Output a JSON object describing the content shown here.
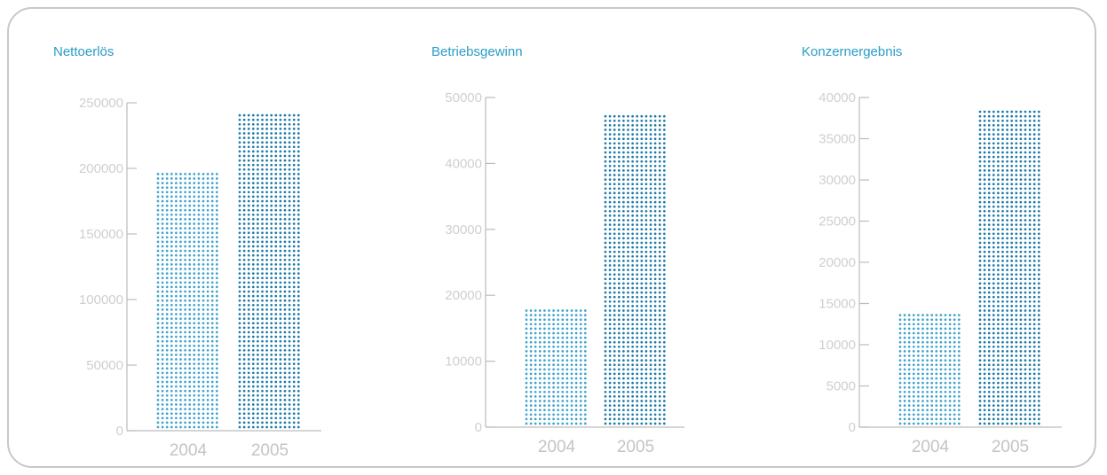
{
  "colors": {
    "series_2004": "#3fa3cb",
    "series_2005": "#1d7aa6",
    "title": "#2a9cc6",
    "axis": "#bcbcbc"
  },
  "chart_data": [
    {
      "type": "bar",
      "title": "Nettoerlös",
      "categories": [
        "2004",
        "2005"
      ],
      "values": [
        197000,
        243000
      ],
      "yticks": [
        "0",
        "50000",
        "100000",
        "150000",
        "200000",
        "250000"
      ],
      "ylim": [
        0,
        250000
      ],
      "grid": false
    },
    {
      "type": "bar",
      "title": "Betriebsgewinn",
      "categories": [
        "2004",
        "2005"
      ],
      "values": [
        18200,
        47500
      ],
      "yticks": [
        "0",
        "10000",
        "20000",
        "30000",
        "40000",
        "50000"
      ],
      "ylim": [
        0,
        50000
      ],
      "grid": false
    },
    {
      "type": "bar",
      "title": "Konzernergebnis",
      "categories": [
        "2004",
        "2005"
      ],
      "values": [
        13800,
        38800
      ],
      "yticks": [
        "0",
        "5000",
        "10000",
        "15000",
        "20000",
        "25000",
        "30000",
        "35000",
        "40000"
      ],
      "ylim": [
        0,
        40000
      ],
      "grid": false
    }
  ]
}
